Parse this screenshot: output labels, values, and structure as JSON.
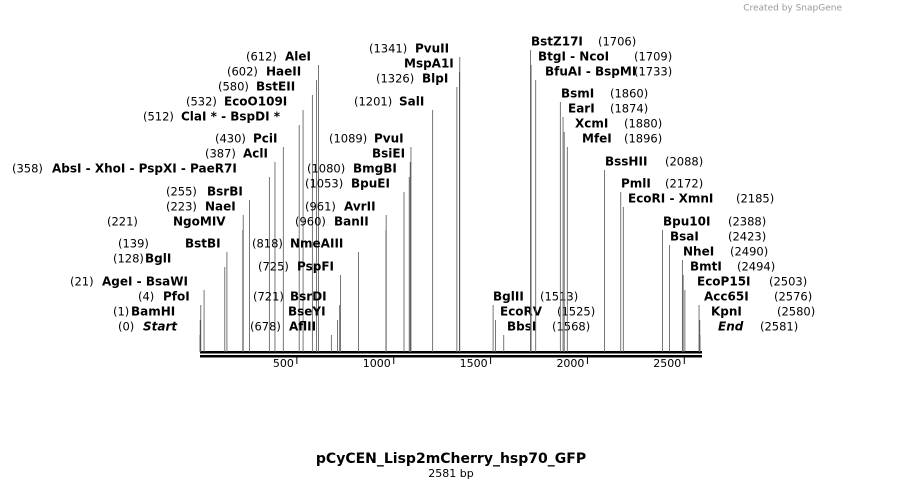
{
  "watermark": "Created by SnapGene",
  "title": "pCyCEN_Lisp2mCherry_hsp70_GFP",
  "subtitle": "2581 bp",
  "xlim": [
    0,
    2581
  ],
  "xticks": [
    500,
    1000,
    1500,
    2000,
    2500
  ],
  "sites": [
    {
      "name": "Start",
      "position": 0,
      "position_label": "(0)",
      "italic": true
    },
    {
      "name": "BamHI",
      "position": 1,
      "position_label": "(1)"
    },
    {
      "name": "PfoI",
      "position": 4,
      "position_label": "(4)"
    },
    {
      "name": "AgeI  - BsaWI",
      "position": 21,
      "position_label": "(21)"
    },
    {
      "name": "BglI",
      "position": 128,
      "position_label": "(128)"
    },
    {
      "name": "BstBI",
      "position": 139,
      "position_label": "(139)"
    },
    {
      "name": "NgoMIV",
      "position": 221,
      "position_label": "(221)"
    },
    {
      "name": "NaeI",
      "position": 223,
      "position_label": "(223)"
    },
    {
      "name": "BsrBI",
      "position": 255,
      "position_label": "(255)"
    },
    {
      "name": "AbsI  - XhoI  - PspXI  - PaeR7I",
      "position": 358,
      "position_label": "(358)"
    },
    {
      "name": "AclI",
      "position": 387,
      "position_label": "(387)"
    },
    {
      "name": "PciI",
      "position": 430,
      "position_label": "(430)"
    },
    {
      "name": "ClaI * - BspDI *",
      "position": 512,
      "position_label": "(512)"
    },
    {
      "name": "EcoO109I",
      "position": 532,
      "position_label": "(532)"
    },
    {
      "name": "BstEII",
      "position": 580,
      "position_label": "(580)"
    },
    {
      "name": "HaeII",
      "position": 602,
      "position_label": "(602)"
    },
    {
      "name": "AleI",
      "position": 612,
      "position_label": "(612)"
    },
    {
      "name": "AflII",
      "position": 678,
      "position_label": "(678)"
    },
    {
      "name": "BseYI",
      "position": 710
    },
    {
      "name": "BsrDI",
      "position": 721,
      "position_label": "(721)"
    },
    {
      "name": "PspFI",
      "position": 725,
      "position_label": "(725)"
    },
    {
      "name": "NmeAIII",
      "position": 818,
      "position_label": "(818)"
    },
    {
      "name": "BanII",
      "position": 960,
      "position_label": "(960)"
    },
    {
      "name": "AvrII",
      "position": 961,
      "position_label": "(961)"
    },
    {
      "name": "BpuEI",
      "position": 1053,
      "position_label": "(1053)"
    },
    {
      "name": "BmgBI",
      "position": 1080,
      "position_label": "(1080)"
    },
    {
      "name": "BsiEI",
      "position": 1085
    },
    {
      "name": "PvuI",
      "position": 1089,
      "position_label": "(1089)"
    },
    {
      "name": "SalI",
      "position": 1201,
      "position_label": "(1201)"
    },
    {
      "name": "BlpI",
      "position": 1326,
      "position_label": "(1326)"
    },
    {
      "name": "MspA1I",
      "position": 1339
    },
    {
      "name": "PvuII",
      "position": 1341,
      "position_label": "(1341)"
    },
    {
      "name": "BglII",
      "position": 1513,
      "position_label": "(1513)"
    },
    {
      "name": "EcoRV",
      "position": 1525,
      "position_label": "(1525)"
    },
    {
      "name": "BbsI",
      "position": 1568,
      "position_label": "(1568)"
    },
    {
      "name": "BstZ17I",
      "position": 1706,
      "position_label": "(1706)"
    },
    {
      "name": "BtgI  - NcoI",
      "position": 1709,
      "position_label": "(1709)"
    },
    {
      "name": "BfuAI  - BspMI",
      "position": 1733,
      "position_label": "(1733)"
    },
    {
      "name": "BsmI",
      "position": 1860,
      "position_label": "(1860)"
    },
    {
      "name": "EarI",
      "position": 1874,
      "position_label": "(1874)"
    },
    {
      "name": "XcmI",
      "position": 1880,
      "position_label": "(1880)"
    },
    {
      "name": "MfeI",
      "position": 1896,
      "position_label": "(1896)"
    },
    {
      "name": "BssHII",
      "position": 2088,
      "position_label": "(2088)"
    },
    {
      "name": "PmlI",
      "position": 2172,
      "position_label": "(2172)"
    },
    {
      "name": "EcoRI  - XmnI",
      "position": 2185,
      "position_label": "(2185)"
    },
    {
      "name": "Bpu10I",
      "position": 2388,
      "position_label": "(2388)"
    },
    {
      "name": "BsaI",
      "position": 2423,
      "position_label": "(2423)"
    },
    {
      "name": "NheI",
      "position": 2490,
      "position_label": "(2490)"
    },
    {
      "name": "BmtI",
      "position": 2494,
      "position_label": "(2494)"
    },
    {
      "name": "EcoP15I",
      "position": 2503,
      "position_label": "(2503)"
    },
    {
      "name": "Acc65I",
      "position": 2576,
      "position_label": "(2576)"
    },
    {
      "name": "KpnI",
      "position": 2580,
      "position_label": "(2580)"
    },
    {
      "name": "End",
      "position": 2581,
      "position_label": "(2581)",
      "italic": true
    }
  ]
}
